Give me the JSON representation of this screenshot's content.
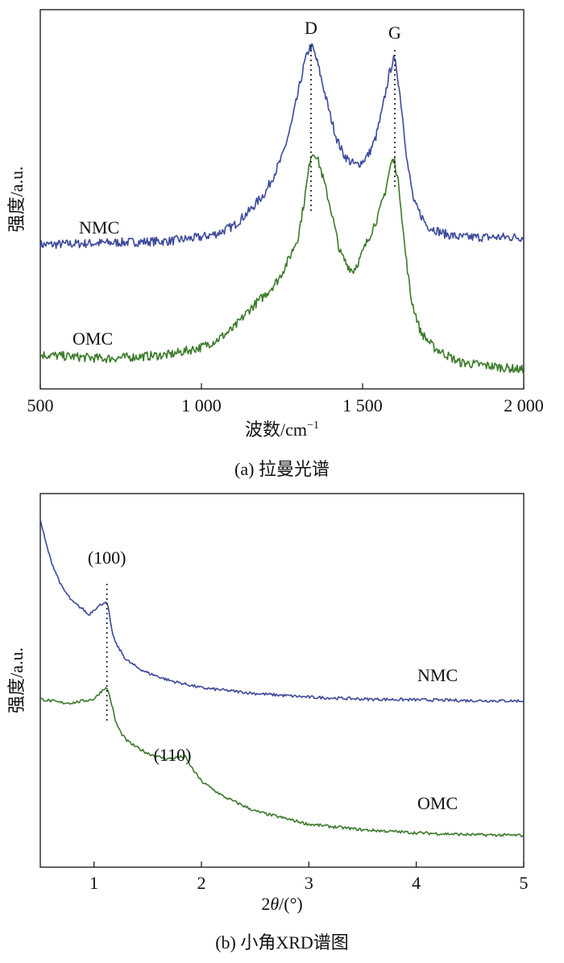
{
  "chart_data": [
    {
      "type": "line",
      "title": "",
      "caption": "(a) 拉曼光谱",
      "xlabel": "波数/cm⁻¹",
      "ylabel": "强度/a.u.",
      "xlim": [
        500,
        2000
      ],
      "yunits": "a.u. (arbitrary)",
      "ylim": [
        0,
        1
      ],
      "xticks": [
        500,
        1000,
        1500,
        2000
      ],
      "xtick_labels": [
        "500",
        "1 000",
        "1 500",
        "2 000"
      ],
      "grid": false,
      "legend": "inline labels",
      "peak_labels": [
        {
          "text": "D",
          "x": 1340
        },
        {
          "text": "G",
          "x": 1600
        }
      ],
      "series": [
        {
          "name": "NMC",
          "color": "#3d4a9a",
          "x": [
            500,
            700,
            900,
            1000,
            1050,
            1100,
            1150,
            1200,
            1250,
            1280,
            1300,
            1320,
            1335,
            1345,
            1360,
            1380,
            1400,
            1420,
            1440,
            1460,
            1480,
            1500,
            1520,
            1540,
            1560,
            1580,
            1595,
            1605,
            1620,
            1640,
            1660,
            1700,
            1750,
            1800,
            1900,
            2000
          ],
          "y": [
            0.38,
            0.385,
            0.39,
            0.4,
            0.41,
            0.43,
            0.47,
            0.52,
            0.61,
            0.7,
            0.78,
            0.86,
            0.9,
            0.9,
            0.86,
            0.79,
            0.72,
            0.66,
            0.62,
            0.6,
            0.59,
            0.6,
            0.62,
            0.66,
            0.73,
            0.82,
            0.87,
            0.85,
            0.75,
            0.59,
            0.49,
            0.43,
            0.41,
            0.4,
            0.4,
            0.4
          ]
        },
        {
          "name": "OMC",
          "color": "#3c7a2a",
          "x": [
            500,
            600,
            700,
            800,
            900,
            1000,
            1050,
            1100,
            1150,
            1200,
            1240,
            1270,
            1300,
            1320,
            1340,
            1355,
            1370,
            1400,
            1430,
            1450,
            1470,
            1490,
            1510,
            1530,
            1550,
            1570,
            1590,
            1600,
            1615,
            1630,
            1650,
            1680,
            1720,
            1800,
            1900,
            2000
          ],
          "y": [
            0.09,
            0.085,
            0.08,
            0.085,
            0.09,
            0.11,
            0.13,
            0.16,
            0.21,
            0.25,
            0.29,
            0.34,
            0.4,
            0.5,
            0.62,
            0.62,
            0.58,
            0.48,
            0.36,
            0.33,
            0.31,
            0.34,
            0.38,
            0.42,
            0.46,
            0.52,
            0.6,
            0.6,
            0.52,
            0.38,
            0.24,
            0.15,
            0.11,
            0.07,
            0.06,
            0.05
          ]
        }
      ]
    },
    {
      "type": "line",
      "title": "",
      "caption": "(b) 小角XRD谱图",
      "xlabel": "2θ/(°)",
      "ylabel": "强度/a.u.",
      "xlim": [
        0.5,
        5
      ],
      "ylim": [
        0,
        1
      ],
      "xticks": [
        1,
        2,
        3,
        4,
        5
      ],
      "xtick_labels": [
        "1",
        "2",
        "3",
        "4",
        "5"
      ],
      "grid": false,
      "legend": "inline labels",
      "peak_labels": [
        {
          "text": "(100)",
          "x": 1.12
        },
        {
          "text": "(110)",
          "x": 1.82
        }
      ],
      "series": [
        {
          "name": "NMC",
          "color": "#3d4a9a",
          "x": [
            0.5,
            0.55,
            0.6,
            0.7,
            0.8,
            0.9,
            0.95,
            1.0,
            1.05,
            1.1,
            1.13,
            1.16,
            1.2,
            1.3,
            1.4,
            1.5,
            1.7,
            2.0,
            2.5,
            3.0,
            3.5,
            4.0,
            4.5,
            5.0
          ],
          "y": [
            0.93,
            0.87,
            0.82,
            0.75,
            0.71,
            0.69,
            0.675,
            0.69,
            0.7,
            0.71,
            0.7,
            0.64,
            0.6,
            0.555,
            0.535,
            0.52,
            0.5,
            0.48,
            0.465,
            0.455,
            0.45,
            0.448,
            0.446,
            0.445
          ]
        },
        {
          "name": "OMC",
          "color": "#3c7a2a",
          "x": [
            0.5,
            0.6,
            0.7,
            0.8,
            0.9,
            1.0,
            1.05,
            1.1,
            1.13,
            1.17,
            1.2,
            1.25,
            1.3,
            1.4,
            1.5,
            1.6,
            1.7,
            1.8,
            1.85,
            1.9,
            2.0,
            2.2,
            2.5,
            3.0,
            3.5,
            4.0,
            4.5,
            5.0
          ],
          "y": [
            0.45,
            0.445,
            0.44,
            0.44,
            0.445,
            0.45,
            0.465,
            0.48,
            0.475,
            0.43,
            0.39,
            0.36,
            0.34,
            0.32,
            0.305,
            0.295,
            0.29,
            0.295,
            0.295,
            0.27,
            0.23,
            0.19,
            0.15,
            0.115,
            0.1,
            0.092,
            0.087,
            0.085
          ]
        }
      ]
    }
  ]
}
